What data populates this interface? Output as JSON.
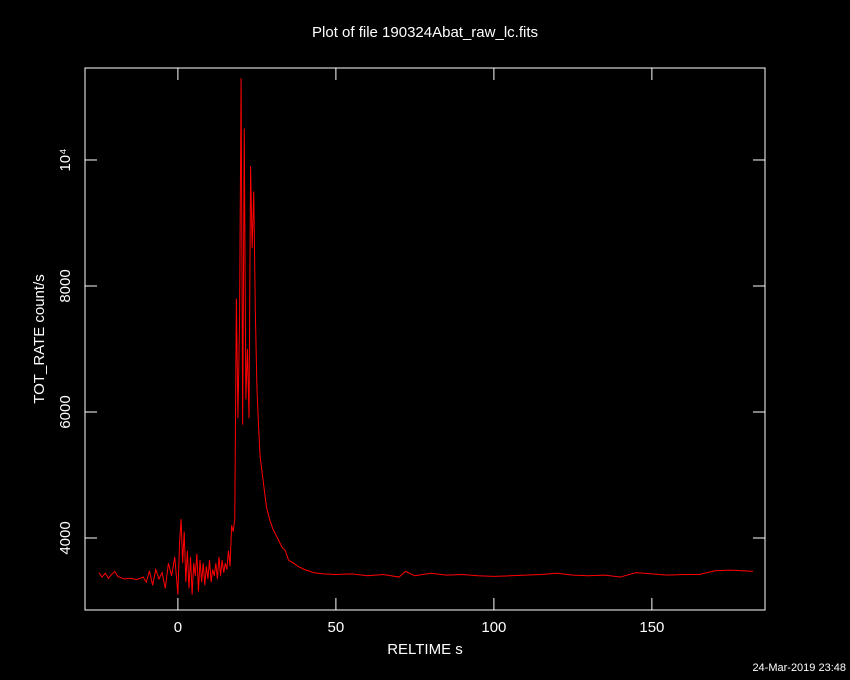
{
  "chart_data": {
    "type": "line",
    "title": "Plot of file 190324Abat_raw_lc.fits",
    "xlabel": "RELTIME  s",
    "ylabel": "TOT_RATE  count/s",
    "timestamp": "24-Mar-2019 23:48",
    "color": "#ff0000",
    "xlim": [
      -29.4,
      185.8
    ],
    "ylim": [
      2857,
      11460
    ],
    "xticks": [
      0,
      50,
      100,
      150
    ],
    "yticks": [
      4000,
      6000,
      8000,
      {
        "value": 10000,
        "label": "10⁴"
      }
    ],
    "x": [
      -25,
      -24,
      -23,
      -22,
      -21,
      -20,
      -19,
      -18,
      -17,
      -15,
      -13,
      -11,
      -10,
      -9,
      -8,
      -7,
      -6,
      -5,
      -4,
      -3,
      -2,
      -1,
      0,
      0.5,
      1,
      1.5,
      2,
      2.5,
      3,
      3.5,
      4,
      4.5,
      5,
      5.5,
      6,
      6.5,
      7,
      7.5,
      8,
      8.5,
      9,
      9.5,
      10,
      10.5,
      11,
      11.5,
      12,
      12.5,
      13,
      13.5,
      14,
      14.5,
      15,
      15.5,
      16,
      16.5,
      17,
      17.5,
      18,
      18.5,
      19,
      19.5,
      20,
      20.5,
      21,
      21.5,
      22,
      22.5,
      23,
      23.5,
      24,
      24.5,
      25,
      25.5,
      26,
      27,
      28,
      29,
      30,
      31,
      32,
      33,
      34,
      35,
      36,
      38,
      40,
      43,
      46,
      50,
      55,
      60,
      65,
      70,
      72,
      75,
      80,
      85,
      90,
      95,
      100,
      105,
      110,
      115,
      120,
      125,
      130,
      135,
      140,
      145,
      150,
      155,
      160,
      165,
      170,
      175,
      182
    ],
    "values": [
      3450,
      3380,
      3440,
      3360,
      3420,
      3470,
      3390,
      3370,
      3350,
      3360,
      3340,
      3380,
      3300,
      3480,
      3250,
      3500,
      3350,
      3450,
      3200,
      3600,
      3400,
      3700,
      3100,
      3900,
      4300,
      3600,
      4100,
      3300,
      3800,
      3200,
      3700,
      3100,
      3600,
      3400,
      3750,
      3150,
      3650,
      3300,
      3600,
      3250,
      3550,
      3350,
      3650,
      3300,
      3500,
      3400,
      3600,
      3350,
      3700,
      3400,
      3650,
      3450,
      3600,
      3500,
      3800,
      3550,
      4200,
      4100,
      4300,
      7800,
      5900,
      7400,
      11300,
      5800,
      10500,
      6200,
      7000,
      5900,
      9900,
      8600,
      9500,
      7600,
      6400,
      5800,
      5300,
      4900,
      4500,
      4300,
      4150,
      4050,
      3950,
      3850,
      3800,
      3650,
      3620,
      3550,
      3500,
      3450,
      3430,
      3420,
      3430,
      3400,
      3420,
      3380,
      3470,
      3400,
      3440,
      3410,
      3420,
      3400,
      3390,
      3400,
      3410,
      3420,
      3440,
      3410,
      3400,
      3410,
      3380,
      3450,
      3430,
      3410,
      3420,
      3420,
      3480,
      3490,
      3470
    ]
  }
}
